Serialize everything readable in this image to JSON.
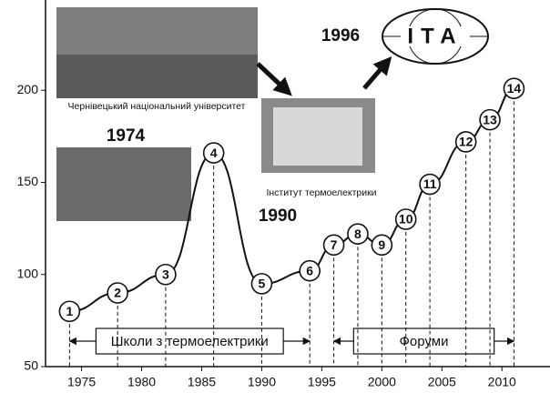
{
  "chart_data": {
    "type": "line",
    "x": [
      1974,
      1978,
      1982,
      1986,
      1990,
      1994,
      1996,
      1998,
      2000,
      2002,
      2004,
      2007,
      2009,
      2011
    ],
    "values": [
      80,
      90,
      100,
      166,
      95,
      102,
      116,
      122,
      116,
      130,
      149,
      172,
      184,
      201
    ],
    "point_labels": [
      "1",
      "2",
      "3",
      "4",
      "5",
      "6",
      "7",
      "8",
      "9",
      "10",
      "11",
      "12",
      "13",
      "14"
    ],
    "color": "#111111",
    "xlim": [
      1972,
      2014
    ],
    "xticks": [
      1975,
      1980,
      1985,
      1990,
      1995,
      2000,
      2005,
      2010
    ],
    "ylim": [
      50,
      249
    ],
    "yticks": [
      50,
      100,
      150,
      200
    ],
    "periods": [
      {
        "label": "Школи з термоелектрики",
        "start": 1974,
        "end": 1994
      },
      {
        "label": "Форуми",
        "start": 1996,
        "end": 2011
      }
    ],
    "annotations": {
      "university": "Чернівецький національний університет",
      "year_1974": "1974",
      "institute": "Інститут термоелектрики",
      "year_1990": "1990",
      "year_1996": "1996",
      "logo": "ІТА"
    }
  }
}
